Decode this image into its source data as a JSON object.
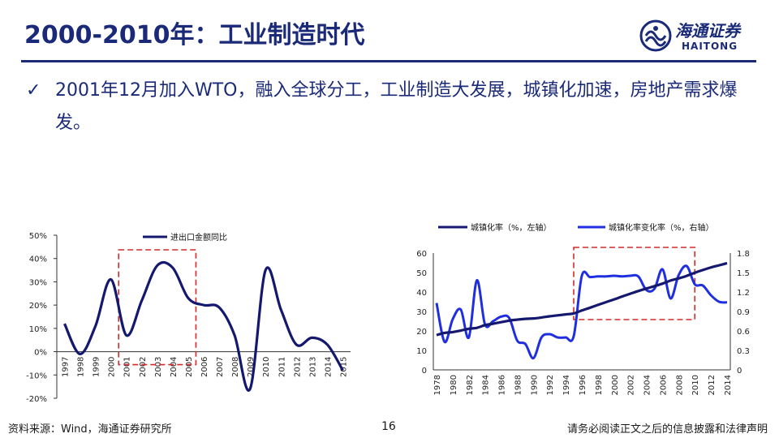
{
  "header": {
    "title": "2000-2010年：工业制造时代",
    "logo_cn": "海通证券",
    "logo_en": "HAITONG"
  },
  "bullet": {
    "text": "2001年12月加入WTO，融入全球分工，工业制造大发展，城镇化加速，房地产需求爆发。"
  },
  "colors": {
    "brand": "#1a2a78",
    "series_dark": "#14186e",
    "series_blue": "#1f2ee0",
    "highlight_box": "#d42a2a"
  },
  "chart_data": [
    {
      "type": "line",
      "title": "",
      "legend": [
        "进出口金额同比"
      ],
      "x": [
        "1997",
        "1998",
        "1999",
        "2000",
        "2001",
        "2002",
        "2003",
        "2004",
        "2005",
        "2006",
        "2007",
        "2008",
        "2009",
        "2010",
        "2011",
        "2012",
        "2013",
        "2014",
        "2015"
      ],
      "series": [
        {
          "name": "进出口金额同比",
          "values": [
            12,
            -1,
            11,
            31,
            7,
            22,
            37,
            36,
            23,
            20,
            19,
            7,
            -16,
            35,
            18,
            3,
            6,
            3,
            -8
          ]
        }
      ],
      "ylim": [
        -20,
        50
      ],
      "yticks": [
        "50%",
        "40%",
        "30%",
        "20%",
        "10%",
        "0%",
        "-10%",
        "-20%"
      ],
      "highlight_range": [
        "2001",
        "2005"
      ]
    },
    {
      "type": "line",
      "title": "",
      "legend": [
        "城镇化率（%，左轴）",
        "城镇化率变化率（%，右轴）"
      ],
      "x": [
        "1978",
        "1979",
        "1980",
        "1981",
        "1982",
        "1983",
        "1984",
        "1985",
        "1986",
        "1987",
        "1988",
        "1989",
        "1990",
        "1991",
        "1992",
        "1993",
        "1994",
        "1995",
        "1996",
        "1997",
        "1998",
        "1999",
        "2000",
        "2001",
        "2002",
        "2003",
        "2004",
        "2005",
        "2006",
        "2007",
        "2008",
        "2009",
        "2010",
        "2011",
        "2012",
        "2013",
        "2014"
      ],
      "xticks": [
        "1978",
        "1980",
        "1982",
        "1984",
        "1986",
        "1988",
        "1990",
        "1992",
        "1994",
        "1996",
        "1998",
        "2000",
        "2002",
        "2004",
        "2006",
        "2008",
        "2010",
        "2012",
        "2014"
      ],
      "series": [
        {
          "name": "城镇化率（%，左轴）",
          "axis": "left",
          "values": [
            17.9,
            19.0,
            19.4,
            20.2,
            21.1,
            21.6,
            23.0,
            23.7,
            24.5,
            25.3,
            25.8,
            26.2,
            26.4,
            26.9,
            27.5,
            28.0,
            28.5,
            29.0,
            30.5,
            31.9,
            33.4,
            34.8,
            36.2,
            37.7,
            39.1,
            40.5,
            41.8,
            43.0,
            44.3,
            45.9,
            47.0,
            48.3,
            49.9,
            51.3,
            52.6,
            53.7,
            54.8
          ]
        },
        {
          "name": "城镇化率变化率（%，右轴）",
          "axis": "right",
          "values": [
            1.03,
            0.43,
            0.78,
            0.93,
            0.5,
            1.38,
            0.7,
            0.75,
            0.82,
            0.8,
            0.45,
            0.4,
            0.18,
            0.5,
            0.55,
            0.5,
            0.5,
            0.52,
            1.45,
            1.43,
            1.44,
            1.44,
            1.45,
            1.44,
            1.45,
            1.44,
            1.23,
            1.25,
            1.55,
            1.1,
            1.46,
            1.6,
            1.32,
            1.3,
            1.15,
            1.05,
            1.04
          ]
        }
      ],
      "ylim_left": [
        0,
        60
      ],
      "ylim_right": [
        0,
        1.8
      ],
      "yticks_left": [
        "60",
        "50",
        "40",
        "30",
        "20",
        "10",
        "0"
      ],
      "yticks_right": [
        "1.8",
        "1.5",
        "1.2",
        "0.9",
        "0.6",
        "0.3",
        "0"
      ],
      "highlight_range": [
        "1996",
        "2010"
      ]
    }
  ],
  "footer": {
    "source": "资料来源：Wind，海通证券研究所",
    "page": "16",
    "disclaimer": "请务必阅读正文之后的信息披露和法律声明"
  }
}
